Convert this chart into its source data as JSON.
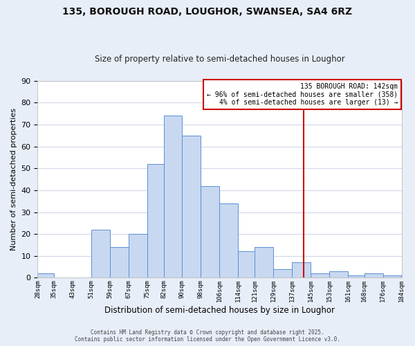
{
  "title": "135, BOROUGH ROAD, LOUGHOR, SWANSEA, SA4 6RZ",
  "subtitle": "Size of property relative to semi-detached houses in Loughor",
  "xlabel": "Distribution of semi-detached houses by size in Loughor",
  "ylabel": "Number of semi-detached properties",
  "bar_edges": [
    28,
    35,
    43,
    51,
    59,
    67,
    75,
    82,
    90,
    98,
    106,
    114,
    121,
    129,
    137,
    145,
    153,
    161,
    168,
    176,
    184
  ],
  "bar_heights": [
    2,
    0,
    0,
    22,
    14,
    20,
    52,
    74,
    65,
    42,
    34,
    12,
    14,
    4,
    7,
    2,
    3,
    1,
    2,
    1
  ],
  "bar_color": "#c8d8f0",
  "bar_edge_color": "#5b8fd4",
  "tick_labels": [
    "28sqm",
    "35sqm",
    "43sqm",
    "51sqm",
    "59sqm",
    "67sqm",
    "75sqm",
    "82sqm",
    "90sqm",
    "98sqm",
    "106sqm",
    "114sqm",
    "121sqm",
    "129sqm",
    "137sqm",
    "145sqm",
    "153sqm",
    "161sqm",
    "168sqm",
    "176sqm",
    "184sqm"
  ],
  "vline_x": 142,
  "vline_color": "#cc0000",
  "ylim": [
    0,
    90
  ],
  "yticks": [
    0,
    10,
    20,
    30,
    40,
    50,
    60,
    70,
    80,
    90
  ],
  "annotation_title": "135 BOROUGH ROAD: 142sqm",
  "annotation_line1": "← 96% of semi-detached houses are smaller (358)",
  "annotation_line2": "4% of semi-detached houses are larger (13) →",
  "annotation_box_color": "#cc0000",
  "plot_bg_color": "#ffffff",
  "fig_bg_color": "#e8eef8",
  "grid_color": "#d0d8e8",
  "footer1": "Contains HM Land Registry data © Crown copyright and database right 2025.",
  "footer2": "Contains public sector information licensed under the Open Government Licence v3.0."
}
